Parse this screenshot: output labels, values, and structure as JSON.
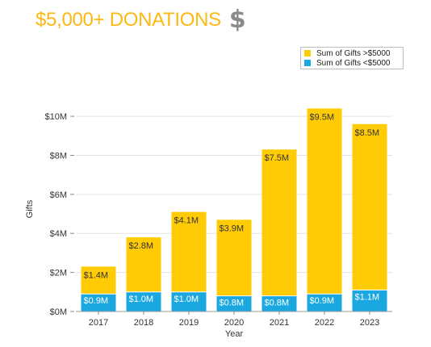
{
  "title": "$5,000+ DONATIONS",
  "title_icon": "dollar-sign-icon",
  "colors": {
    "title": "#FDB913",
    "high": "#FFCB05",
    "low": "#1BA8E0",
    "grid": "#e3e3e3"
  },
  "chart_data": {
    "type": "bar",
    "stacked": true,
    "categories": [
      "2017",
      "2018",
      "2019",
      "2020",
      "2021",
      "2022",
      "2023"
    ],
    "series": [
      {
        "name": "Sum of Gifts <$5000",
        "values": [
          0.9,
          1.0,
          1.0,
          0.8,
          0.8,
          0.9,
          1.1
        ],
        "labels": [
          "$0.9M",
          "$1.0M",
          "$1.0M",
          "$0.8M",
          "$0.8M",
          "$0.9M",
          "$1.1M"
        ]
      },
      {
        "name": "Sum of Gifts >$5000",
        "values": [
          1.4,
          2.8,
          4.1,
          3.9,
          7.5,
          9.5,
          8.5
        ],
        "labels": [
          "$1.4M",
          "$2.8M",
          "$4.1M",
          "$3.9M",
          "$7.5M",
          "$9.5M",
          "$8.5M"
        ]
      }
    ],
    "legend_order": [
      "Sum of Gifts >$5000",
      "Sum of Gifts <$5000"
    ],
    "legend_position": "top-right",
    "xlabel": "Year",
    "ylabel": "Gifts",
    "ylim": [
      0,
      10.5
    ],
    "yticks": [
      0,
      2,
      4,
      6,
      8,
      10
    ],
    "ytick_labels": [
      "$0M",
      "$2M",
      "$4M",
      "$6M",
      "$8M",
      "$10M"
    ],
    "grid": true
  }
}
